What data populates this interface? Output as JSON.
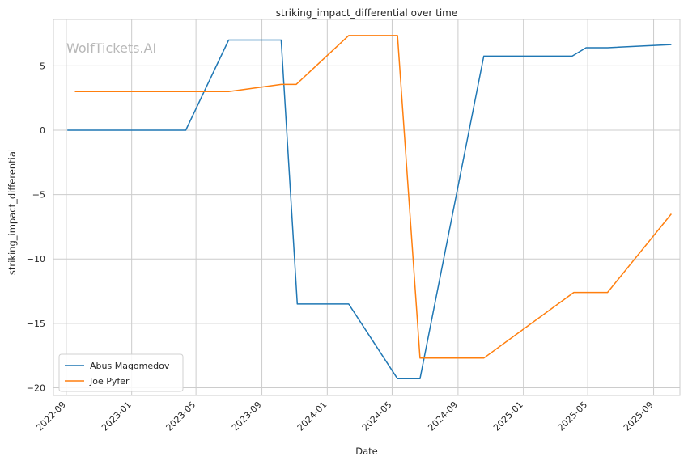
{
  "chart_data": {
    "type": "line",
    "title": "striking_impact_differential over time",
    "xlabel": "Date",
    "ylabel": "striking_impact_differential",
    "watermark": "WolfTickets.AI",
    "x_ticks": [
      "2022-09",
      "2023-01",
      "2023-05",
      "2023-09",
      "2024-01",
      "2024-05",
      "2024-09",
      "2025-01",
      "2025-05",
      "2025-09"
    ],
    "y_ticks": [
      5,
      0,
      -5,
      -10,
      -15,
      -20
    ],
    "y_tick_labels": [
      "5",
      "0",
      "−5",
      "−10",
      "−15",
      "−20"
    ],
    "xlim": [
      "2022-08-08",
      "2025-10-20"
    ],
    "ylim": [
      -20.6,
      8.6
    ],
    "grid": true,
    "legend_position": "lower-left",
    "series": [
      {
        "name": "Abus Magomedov",
        "color": "#1f77b4",
        "points": [
          {
            "x": "2022-09-03",
            "y": 0
          },
          {
            "x": "2023-04-12",
            "y": 0
          },
          {
            "x": "2023-07-01",
            "y": 7.0
          },
          {
            "x": "2023-10-07",
            "y": 7.0
          },
          {
            "x": "2023-11-06",
            "y": -13.5
          },
          {
            "x": "2024-02-10",
            "y": -13.5
          },
          {
            "x": "2024-05-11",
            "y": -19.3
          },
          {
            "x": "2024-06-22",
            "y": -19.3
          },
          {
            "x": "2024-10-19",
            "y": 5.75
          },
          {
            "x": "2025-04-02",
            "y": 5.75
          },
          {
            "x": "2025-04-28",
            "y": 6.4
          },
          {
            "x": "2025-06-07",
            "y": 6.4
          },
          {
            "x": "2025-10-04",
            "y": 6.65
          }
        ]
      },
      {
        "name": "Joe Pyfer",
        "color": "#ff7f0e",
        "points": [
          {
            "x": "2022-09-17",
            "y": 3.0
          },
          {
            "x": "2023-07-01",
            "y": 3.0
          },
          {
            "x": "2023-10-07",
            "y": 3.55
          },
          {
            "x": "2023-11-04",
            "y": 3.55
          },
          {
            "x": "2024-02-10",
            "y": 7.35
          },
          {
            "x": "2024-05-11",
            "y": 7.35
          },
          {
            "x": "2024-06-22",
            "y": -17.7
          },
          {
            "x": "2024-10-19",
            "y": -17.7
          },
          {
            "x": "2025-04-05",
            "y": -12.6
          },
          {
            "x": "2025-06-07",
            "y": -12.6
          },
          {
            "x": "2025-10-04",
            "y": -6.5
          }
        ]
      }
    ]
  }
}
